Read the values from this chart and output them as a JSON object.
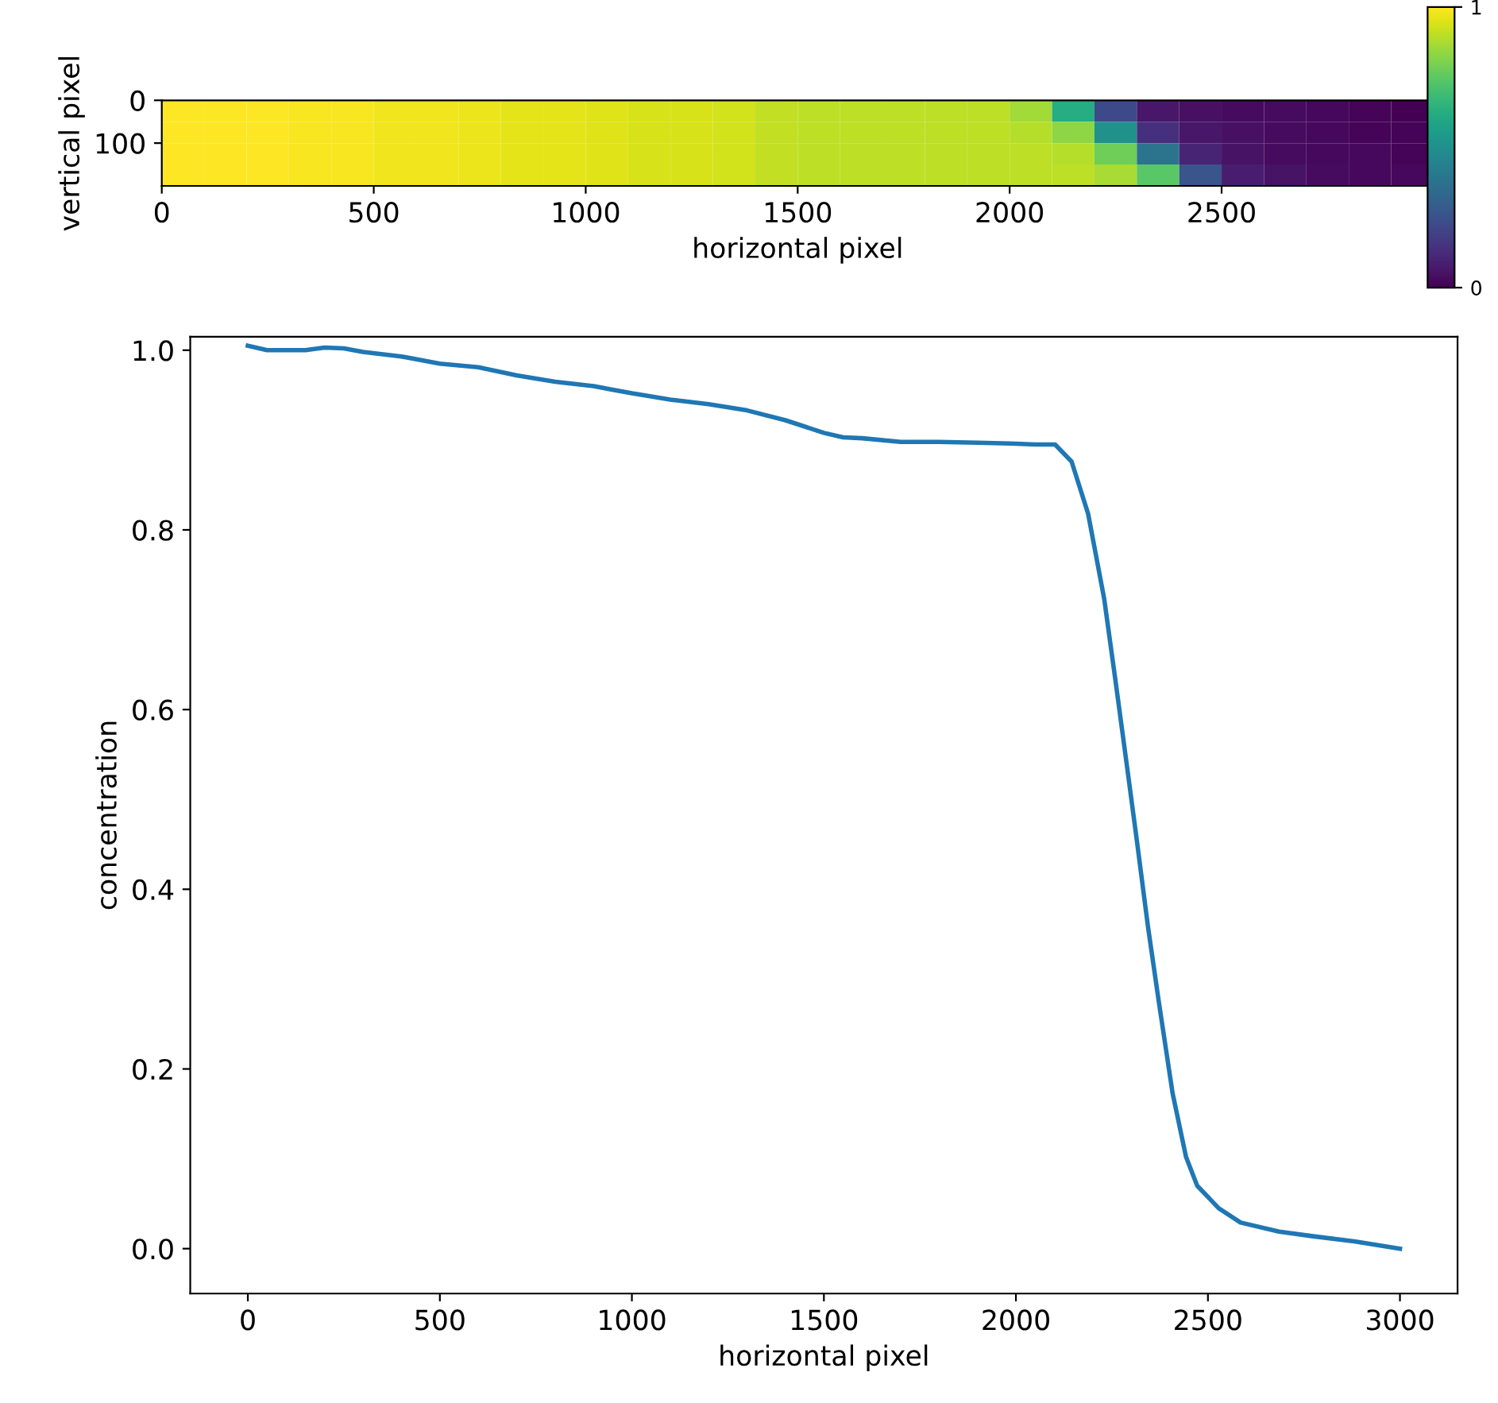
{
  "chart_data": [
    {
      "type": "heatmap",
      "xlabel": "horizontal pixel",
      "ylabel": "vertical pixel",
      "x": [
        50,
        150,
        250,
        350,
        450,
        550,
        650,
        750,
        850,
        950,
        1050,
        1150,
        1250,
        1350,
        1450,
        1550,
        1650,
        1750,
        1850,
        1950,
        2050,
        2150,
        2250,
        2350,
        2450,
        2550,
        2650,
        2750,
        2850,
        2950
      ],
      "y": [
        25,
        75,
        125,
        175
      ],
      "cells": [
        [
          1.0,
          1.0,
          1.0,
          0.99,
          0.99,
          0.98,
          0.98,
          0.97,
          0.96,
          0.96,
          0.95,
          0.94,
          0.94,
          0.93,
          0.91,
          0.9,
          0.9,
          0.9,
          0.9,
          0.9,
          0.86,
          0.62,
          0.22,
          0.06,
          0.04,
          0.03,
          0.03,
          0.02,
          0.01,
          0.0
        ],
        [
          1.0,
          1.0,
          1.0,
          0.99,
          0.99,
          0.98,
          0.98,
          0.97,
          0.96,
          0.96,
          0.95,
          0.94,
          0.94,
          0.93,
          0.91,
          0.9,
          0.9,
          0.9,
          0.9,
          0.9,
          0.89,
          0.83,
          0.5,
          0.14,
          0.06,
          0.04,
          0.03,
          0.02,
          0.01,
          0.01
        ],
        [
          1.0,
          1.0,
          1.0,
          0.99,
          0.99,
          0.98,
          0.98,
          0.97,
          0.96,
          0.96,
          0.95,
          0.94,
          0.94,
          0.93,
          0.91,
          0.9,
          0.9,
          0.9,
          0.9,
          0.9,
          0.9,
          0.89,
          0.78,
          0.38,
          0.1,
          0.05,
          0.03,
          0.02,
          0.02,
          0.01
        ],
        [
          1.0,
          1.0,
          1.0,
          0.99,
          0.99,
          0.98,
          0.98,
          0.97,
          0.96,
          0.96,
          0.95,
          0.94,
          0.94,
          0.93,
          0.91,
          0.9,
          0.9,
          0.9,
          0.9,
          0.9,
          0.9,
          0.9,
          0.87,
          0.74,
          0.26,
          0.08,
          0.05,
          0.03,
          0.02,
          0.02
        ]
      ],
      "xlim": [
        0,
        3000
      ],
      "xticks": [
        0,
        500,
        1000,
        1500,
        2000,
        2500
      ],
      "ylim": [
        200,
        0
      ],
      "yticks": [
        0,
        100
      ],
      "clim": [
        0,
        1
      ],
      "cticks": [
        0,
        1
      ]
    },
    {
      "type": "line",
      "xlabel": "horizontal pixel",
      "ylabel": "concentration",
      "xlim": [
        -150,
        3150
      ],
      "xticks": [
        0,
        500,
        1000,
        1500,
        2000,
        2500,
        3000
      ],
      "ylim": [
        -0.05,
        1.015
      ],
      "yticks": [
        {
          "value": 0,
          "label": "0.0"
        },
        0.2,
        0.4,
        0.6,
        0.8,
        {
          "value": 1,
          "label": "1.0"
        }
      ],
      "grid": false,
      "series": [
        {
          "color": "#1f77b4",
          "x": [
            0,
            50,
            100,
            150,
            200,
            250,
            300,
            400,
            500,
            600,
            700,
            800,
            900,
            1000,
            1100,
            1200,
            1300,
            1400,
            1500,
            1550,
            1600,
            1700,
            1800,
            1900,
            2000,
            2050,
            2102,
            2145,
            2188,
            2230,
            2259,
            2287,
            2315,
            2344,
            2372,
            2408,
            2443,
            2472,
            2528,
            2585,
            2685,
            2770,
            2884,
            3000
          ],
          "values": [
            1.005,
            1.0,
            1.0,
            1.0,
            1.003,
            1.002,
            0.998,
            0.993,
            0.985,
            0.981,
            0.972,
            0.965,
            0.96,
            0.952,
            0.945,
            0.94,
            0.933,
            0.922,
            0.908,
            0.903,
            0.902,
            0.898,
            0.898,
            0.897,
            0.896,
            0.895,
            0.895,
            0.876,
            0.818,
            0.723,
            0.633,
            0.544,
            0.454,
            0.358,
            0.275,
            0.173,
            0.102,
            0.07,
            0.045,
            0.029,
            0.019,
            0.014,
            0.008,
            0.0
          ]
        }
      ]
    }
  ]
}
